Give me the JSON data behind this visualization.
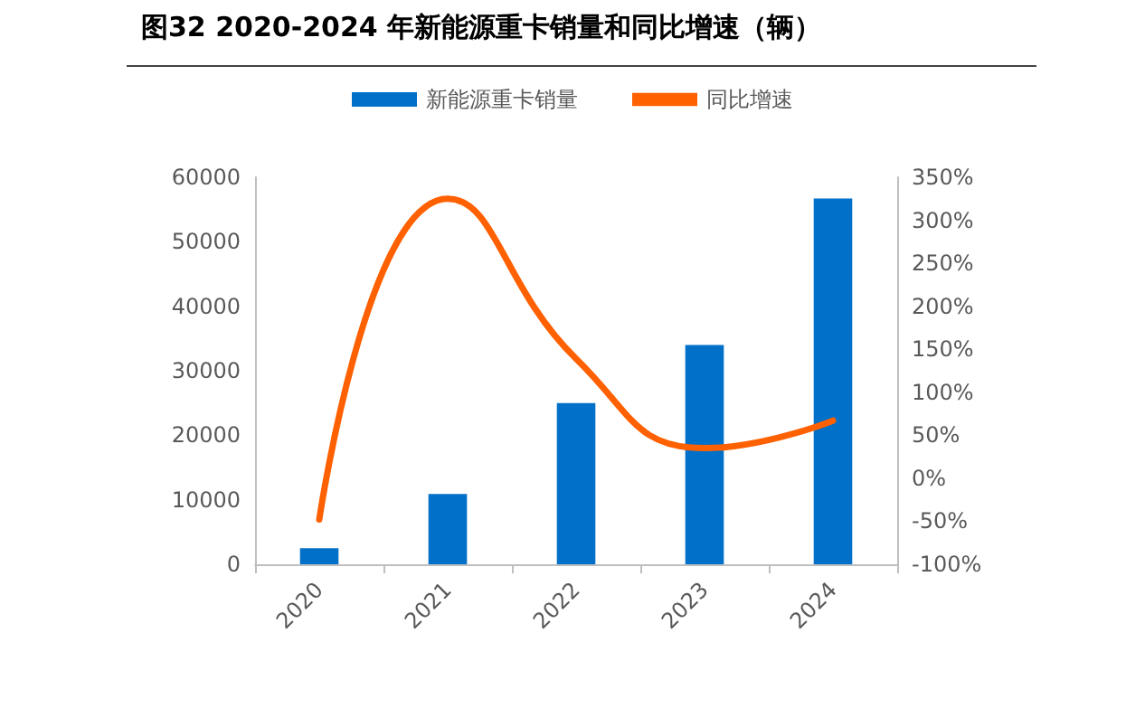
{
  "chart_data": {
    "type": "bar",
    "title": "图32 2020-2024 年新能源重卡销量和同比增速（辆）",
    "categories": [
      "2020",
      "2021",
      "2022",
      "2023",
      "2024"
    ],
    "series": [
      {
        "name": "新能源重卡销量",
        "color": "#0070c8",
        "values": [
          2500,
          10900,
          25000,
          34000,
          56700
        ]
      },
      {
        "name": "同比增速",
        "type": "line",
        "axis": "y2",
        "color": "#ff6000",
        "values": [
          -48,
          325,
          139,
          35,
          67
        ]
      }
    ],
    "ylim": [
      0,
      60000
    ],
    "yticks": [
      0,
      10000,
      20000,
      30000,
      40000,
      50000,
      60000
    ],
    "y2lim": [
      -100,
      350
    ],
    "y2ticks": [
      {
        "value": -100,
        "label": "-100%"
      },
      {
        "value": -50,
        "label": "-50%"
      },
      {
        "value": 0,
        "label": "0%"
      },
      {
        "value": 50,
        "label": "50%"
      },
      {
        "value": 100,
        "label": "100%"
      },
      {
        "value": 150,
        "label": "150%"
      },
      {
        "value": 200,
        "label": "200%"
      },
      {
        "value": 250,
        "label": "250%"
      },
      {
        "value": 300,
        "label": "300%"
      },
      {
        "value": 350,
        "label": "350%"
      }
    ],
    "grid": false,
    "legend": "top",
    "marker": "none",
    "line_style": "solid"
  }
}
